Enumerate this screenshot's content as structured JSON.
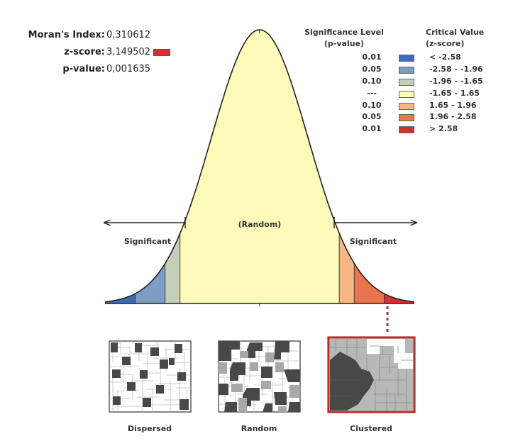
{
  "stats": {
    "morans_label": "Moran's Index:",
    "morans_value": "0,310612",
    "z_label": "z-score:",
    "z_value": "3,149502",
    "p_label": "p-value:",
    "p_value": "0,001635",
    "z_swatch_color": "#d7302b"
  },
  "legend": {
    "significance_header": "Significance Level",
    "significance_sub": "(p-value)",
    "critical_header": "Critical Value",
    "critical_sub": "(z-score)",
    "rows": [
      {
        "p": "0.01",
        "z": "< -2.58",
        "color": "#3e6db5"
      },
      {
        "p": "0.05",
        "z": "-2.58 - -1.96",
        "color": "#7f9cc4"
      },
      {
        "p": "0.10",
        "z": "-1.96 - -1.65",
        "color": "#c5cfb8"
      },
      {
        "p": "---",
        "z": "-1.65 - 1.65",
        "color": "#fdfbb9"
      },
      {
        "p": "0.10",
        "z": "1.65 - 1.96",
        "color": "#f6b784"
      },
      {
        "p": "0.05",
        "z": "1.96 - 2.58",
        "color": "#ea744e"
      },
      {
        "p": "0.01",
        "z": "> 2.58",
        "color": "#d7302b"
      }
    ]
  },
  "curve": {
    "random_label": "(Random)",
    "significant_left": "Significant",
    "significant_right": "Significant"
  },
  "maps": {
    "dispersed_label": "Dispersed",
    "random_label": "Random",
    "clustered_label": "Clustered",
    "highlight_color": "#b5302a"
  }
}
